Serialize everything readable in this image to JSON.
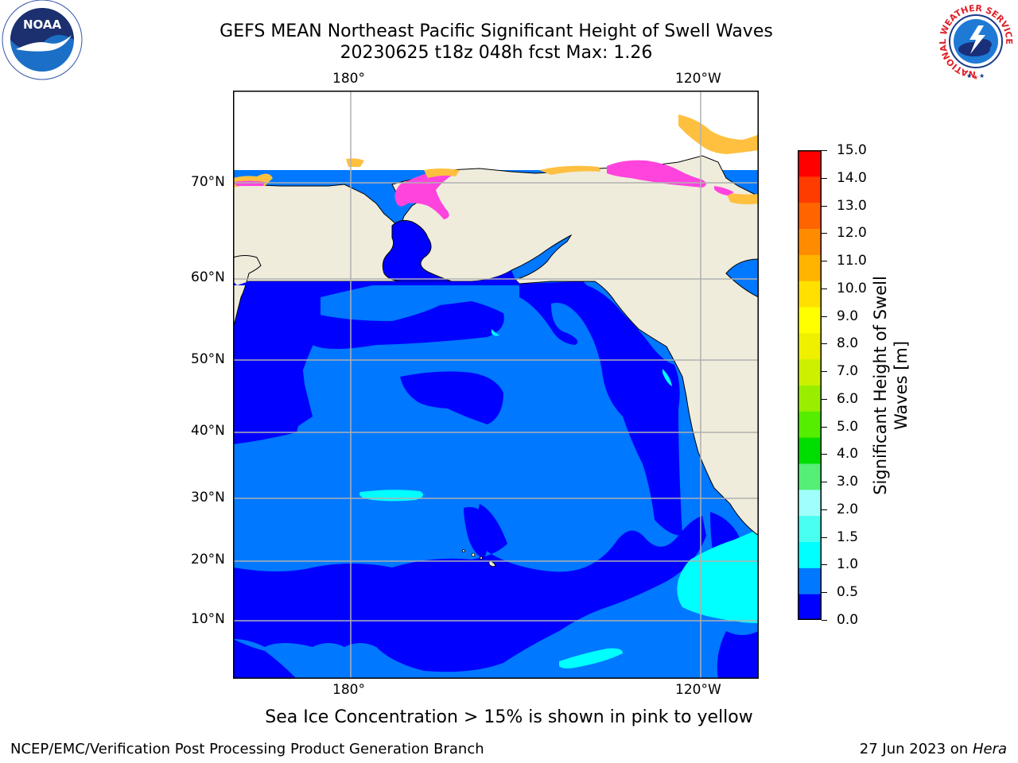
{
  "title": {
    "line1": "GEFS MEAN Northeast Pacific Significant Height of Swell Waves",
    "line2": "20230625 t18z 048h fcst   Max: 1.26"
  },
  "logos": {
    "left": "NOAA",
    "left_ring_text": "NATIONAL OCEANIC AND ATMOSPHERIC ADMINISTRATION · U.S. DEPARTMENT OF COMMERCE",
    "right_ring_text": "NATIONAL WEATHER SERVICE"
  },
  "map": {
    "lon_labels_top": [
      "180°",
      "120°W"
    ],
    "lon_labels_bottom": [
      "180°",
      "120°W"
    ],
    "lat_labels": [
      "70°N",
      "60°N",
      "50°N",
      "40°N",
      "30°N",
      "20°N",
      "10°N"
    ],
    "colors": {
      "land": "#efecdc",
      "swell_0_0_5": "#0000ff",
      "swell_0_5_1_0": "#0078ff",
      "swell_1_0_1_5": "#00ffff",
      "ice_pink": "#ff44dd",
      "ice_yellow": "#ffc040",
      "grid": "#b0b0b0"
    }
  },
  "colorbar": {
    "ticks": [
      "15.0",
      "14.0",
      "13.0",
      "12.0",
      "11.0",
      "10.0",
      "9.0",
      "8.0",
      "7.0",
      "6.0",
      "5.0",
      "4.0",
      "3.0",
      "2.0",
      "1.5",
      "1.0",
      "0.5",
      "0.0"
    ],
    "colors": [
      "#0000ff",
      "#0078ff",
      "#00ffff",
      "#48fff0",
      "#a0fffa",
      "#55ee77",
      "#00dd00",
      "#55ee00",
      "#99ee00",
      "#ccf000",
      "#eef000",
      "#ffff00",
      "#ffe000",
      "#ffb400",
      "#ff8c00",
      "#ff6400",
      "#ff3c00",
      "#ff0000"
    ],
    "label_line1": "Significant Height of Swell",
    "label_line2": "Waves [m]"
  },
  "note": "Sea Ice Concentration > 15% is shown in pink to yellow",
  "footer": {
    "left": "NCEP/EMC/Verification Post Processing Product Generation Branch",
    "right_date": "27 Jun 2023 on ",
    "right_host": "Hera"
  }
}
